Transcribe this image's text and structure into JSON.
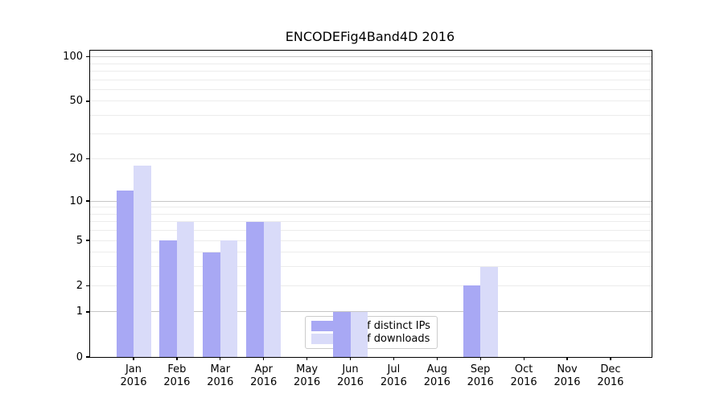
{
  "chart_data": {
    "type": "bar",
    "title": "ENCODEFig4Band4D 2016",
    "categories": [
      "Jan",
      "Feb",
      "Mar",
      "Apr",
      "May",
      "Jun",
      "Jul",
      "Aug",
      "Sep",
      "Oct",
      "Nov",
      "Dec"
    ],
    "year_label": "2016",
    "series": [
      {
        "name": "Nb of distinct IPs",
        "color": "#a8a8f4",
        "values": [
          12,
          5,
          4,
          7,
          0,
          1,
          0,
          0,
          2,
          0,
          0,
          0
        ]
      },
      {
        "name": "Nb of downloads",
        "color": "#d9dbf9",
        "values": [
          18,
          7,
          5,
          7,
          0,
          1,
          0,
          0,
          3,
          0,
          0,
          0
        ]
      }
    ],
    "yscale": "log1p",
    "ylim": [
      0,
      110
    ],
    "yticks": [
      0,
      1,
      2,
      5,
      10,
      20,
      50,
      100
    ],
    "gridlines": {
      "major": [
        1,
        10,
        100
      ],
      "minor": [
        2,
        3,
        4,
        5,
        6,
        7,
        8,
        9,
        20,
        30,
        40,
        50,
        60,
        70,
        80,
        90
      ]
    },
    "legend_position": "lower center",
    "grid": true
  },
  "colors": {
    "grid_major": "#c6c6c6",
    "grid_minor": "#ececec",
    "axis": "#000000",
    "background": "#ffffff",
    "legend_border": "#cccccc"
  }
}
